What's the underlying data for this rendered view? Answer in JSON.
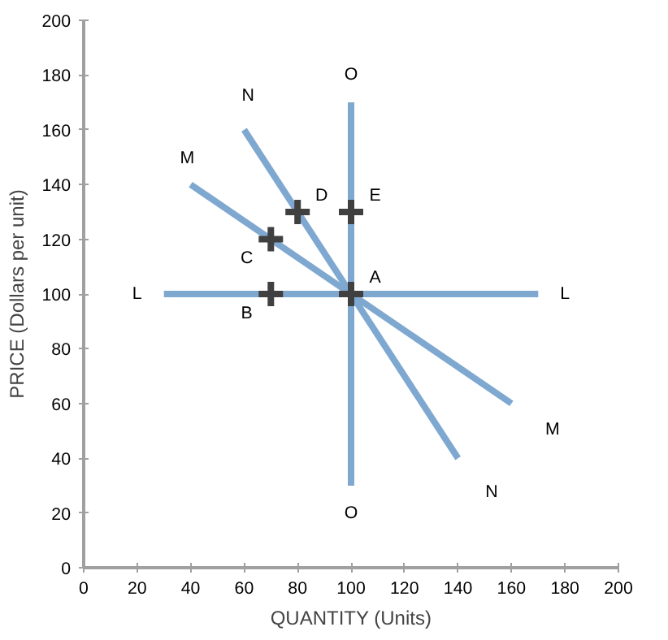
{
  "chart_data": {
    "type": "line",
    "xlabel": "QUANTITY (Units)",
    "ylabel": "PRICE (Dollars per unit)",
    "xlim": [
      0,
      200
    ],
    "ylim": [
      0,
      200
    ],
    "xticks": [
      0,
      20,
      40,
      60,
      80,
      100,
      120,
      140,
      160,
      180,
      200
    ],
    "yticks": [
      0,
      20,
      40,
      60,
      80,
      100,
      120,
      140,
      160,
      180,
      200
    ],
    "grid": false,
    "legend": false,
    "line_style": "solid",
    "series": [
      {
        "name": "L",
        "color": "#7fa8d1",
        "x": [
          30,
          170
        ],
        "values": [
          100,
          100
        ]
      },
      {
        "name": "O",
        "color": "#7fa8d1",
        "x": [
          100,
          100
        ],
        "values": [
          170,
          30
        ]
      },
      {
        "name": "M",
        "color": "#7fa8d1",
        "x": [
          40,
          160
        ],
        "values": [
          140,
          60
        ]
      },
      {
        "name": "N",
        "color": "#7fa8d1",
        "x": [
          60,
          140
        ],
        "values": [
          160,
          40
        ]
      },
      {
        "type": "scatter",
        "marker": "cross",
        "color": "#404040",
        "x": [
          100,
          70,
          70,
          80,
          100
        ],
        "values": [
          100,
          100,
          120,
          130,
          130
        ]
      }
    ],
    "annotations": [
      {
        "text": "A",
        "x": 100,
        "y": 100
      },
      {
        "text": "B",
        "x": 70,
        "y": 100
      },
      {
        "text": "C",
        "x": 70,
        "y": 120
      },
      {
        "text": "D",
        "x": 80,
        "y": 130
      },
      {
        "text": "E",
        "x": 100,
        "y": 130
      }
    ]
  }
}
